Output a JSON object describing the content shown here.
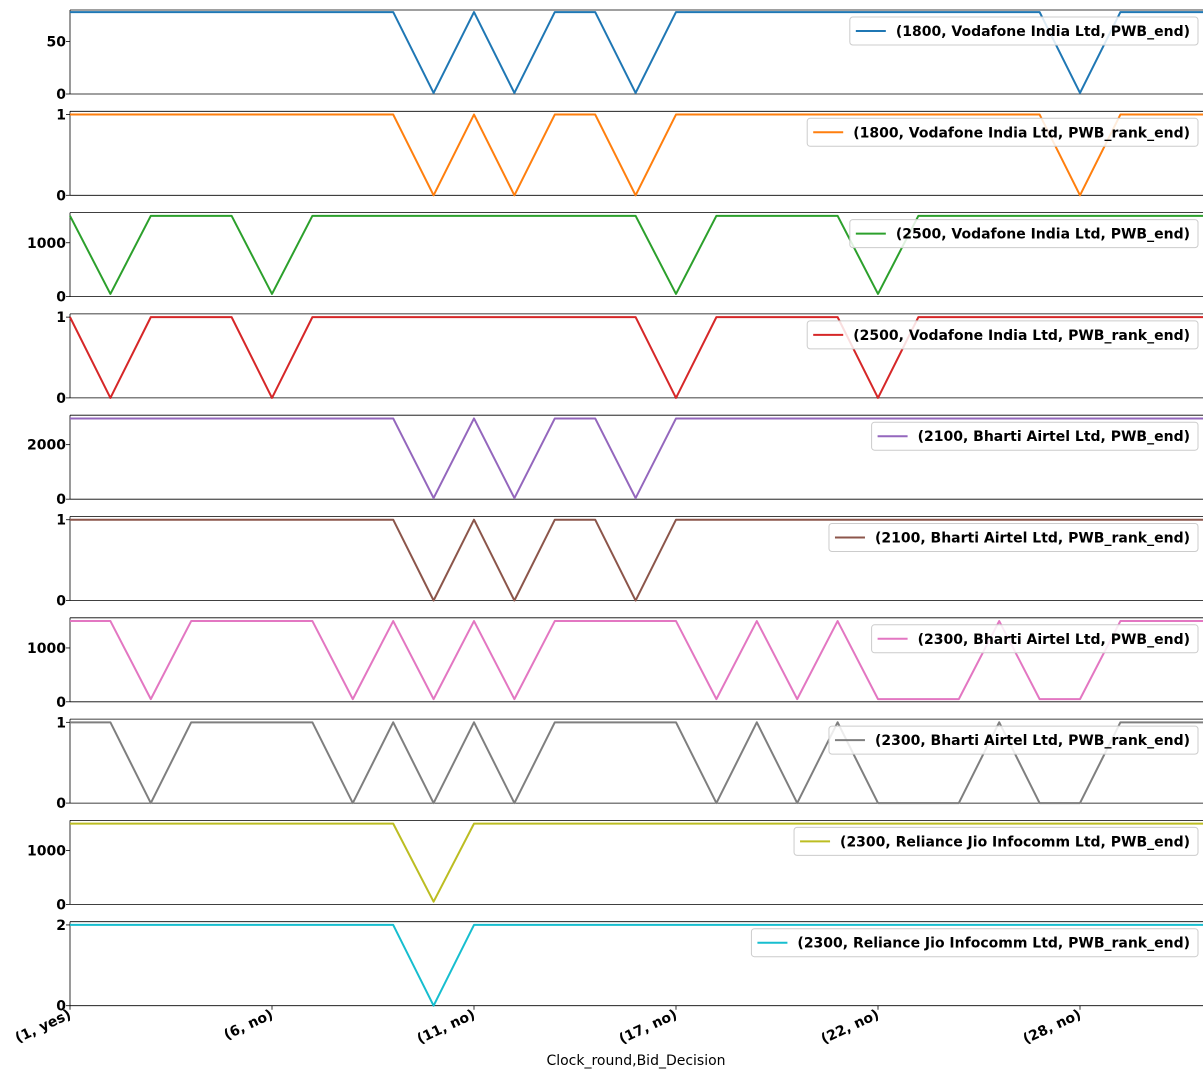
{
  "chart_data": {
    "type": "line",
    "xlabel": "Clock_round,Bid_Decision",
    "x_tick_labels": [
      "(1, yes)",
      "(6, no)",
      "(11, no)",
      "(17, no)",
      "(22, no)",
      "(28, no)"
    ],
    "x_tick_index": [
      0,
      5,
      10,
      15,
      20,
      25
    ],
    "legend_position": "upper right",
    "panels": [
      {
        "name": "(1800, Vodafone India Ltd, PWB_end)",
        "color": "#1f77b4",
        "ylim": [
          0,
          80
        ],
        "yticks": [
          0,
          50
        ],
        "values": [
          78,
          78,
          78,
          78,
          78,
          78,
          78,
          78,
          78,
          1,
          78,
          1,
          78,
          78,
          1,
          78,
          78,
          78,
          78,
          78,
          78,
          78,
          78,
          78,
          78,
          1,
          78,
          78,
          78,
          78
        ]
      },
      {
        "name": "(1800, Vodafone India Ltd, PWB_rank_end)",
        "color": "#ff7f0e",
        "ylim": [
          0,
          1.04
        ],
        "yticks": [
          0,
          1
        ],
        "values": [
          1,
          1,
          1,
          1,
          1,
          1,
          1,
          1,
          1,
          0,
          1,
          0,
          1,
          1,
          0,
          1,
          1,
          1,
          1,
          1,
          1,
          1,
          1,
          1,
          1,
          0,
          1,
          1,
          1,
          1
        ]
      },
      {
        "name": "(2500, Vodafone India Ltd, PWB_end)",
        "color": "#2ca02c",
        "ylim": [
          0,
          1560
        ],
        "yticks": [
          0,
          1000
        ],
        "values": [
          1500,
          50,
          1500,
          1500,
          1500,
          50,
          1500,
          1500,
          1500,
          1500,
          1500,
          1500,
          1500,
          1500,
          1500,
          50,
          1500,
          1500,
          1500,
          1500,
          50,
          1500,
          1500,
          1500,
          1500,
          1500,
          1500,
          1500,
          1500,
          1500
        ]
      },
      {
        "name": "(2500, Vodafone India Ltd, PWB_rank_end)",
        "color": "#d62728",
        "ylim": [
          0,
          1.04
        ],
        "yticks": [
          0,
          1
        ],
        "values": [
          1,
          0,
          1,
          1,
          1,
          0,
          1,
          1,
          1,
          1,
          1,
          1,
          1,
          1,
          1,
          0,
          1,
          1,
          1,
          1,
          0,
          1,
          1,
          1,
          1,
          1,
          1,
          1,
          1,
          1
        ]
      },
      {
        "name": "(2100, Bharti Airtel Ltd, PWB_end)",
        "color": "#9467bd",
        "ylim": [
          0,
          3080
        ],
        "yticks": [
          0,
          2000
        ],
        "values": [
          2960,
          2960,
          2960,
          2960,
          2960,
          2960,
          2960,
          2960,
          2960,
          40,
          2960,
          40,
          2960,
          2960,
          40,
          2960,
          2960,
          2960,
          2960,
          2960,
          2960,
          2960,
          2960,
          2960,
          2960,
          2960,
          2960,
          2960,
          2960,
          2960
        ]
      },
      {
        "name": "(2100, Bharti Airtel Ltd, PWB_rank_end)",
        "color": "#8c564b",
        "ylim": [
          0,
          1.04
        ],
        "yticks": [
          0,
          1
        ],
        "values": [
          1,
          1,
          1,
          1,
          1,
          1,
          1,
          1,
          1,
          0,
          1,
          0,
          1,
          1,
          0,
          1,
          1,
          1,
          1,
          1,
          1,
          1,
          1,
          1,
          1,
          1,
          1,
          1,
          1,
          1
        ]
      },
      {
        "name": "(2300, Bharti Airtel Ltd, PWB_end)",
        "color": "#e377c2",
        "ylim": [
          0,
          1560
        ],
        "yticks": [
          0,
          1000
        ],
        "values": [
          1500,
          1500,
          50,
          1500,
          1500,
          1500,
          1500,
          50,
          1500,
          50,
          1500,
          50,
          1500,
          1500,
          1500,
          1500,
          50,
          1500,
          50,
          1500,
          50,
          50,
          50,
          1500,
          50,
          50,
          1500,
          1500,
          1500,
          1500
        ]
      },
      {
        "name": "(2300, Bharti Airtel Ltd, PWB_rank_end)",
        "color": "#7f7f7f",
        "ylim": [
          0,
          1.04
        ],
        "yticks": [
          0,
          1
        ],
        "values": [
          1,
          1,
          0,
          1,
          1,
          1,
          1,
          0,
          1,
          0,
          1,
          0,
          1,
          1,
          1,
          1,
          0,
          1,
          0,
          1,
          0,
          0,
          0,
          1,
          0,
          0,
          1,
          1,
          1,
          1
        ]
      },
      {
        "name": "(2300, Reliance Jio Infocomm Ltd, PWB_end)",
        "color": "#bcbd22",
        "ylim": [
          0,
          1560
        ],
        "yticks": [
          0,
          1000
        ],
        "values": [
          1500,
          1500,
          1500,
          1500,
          1500,
          1500,
          1500,
          1500,
          1500,
          50,
          1500,
          1500,
          1500,
          1500,
          1500,
          1500,
          1500,
          1500,
          1500,
          1500,
          1500,
          1500,
          1500,
          1500,
          1500,
          1500,
          1500,
          1500,
          1500,
          1500
        ]
      },
      {
        "name": "(2300, Reliance Jio Infocomm Ltd, PWB_rank_end)",
        "color": "#17becf",
        "ylim": [
          0,
          2.08
        ],
        "yticks": [
          0,
          2
        ],
        "values": [
          2,
          2,
          2,
          2,
          2,
          2,
          2,
          2,
          2,
          0,
          2,
          2,
          2,
          2,
          2,
          2,
          2,
          2,
          2,
          2,
          2,
          2,
          2,
          2,
          2,
          2,
          2,
          2,
          2,
          2
        ]
      }
    ]
  }
}
